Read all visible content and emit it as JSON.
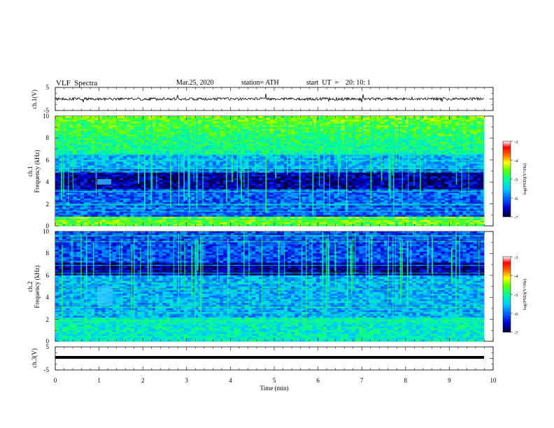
{
  "header": {
    "title": "VLF  Spectra",
    "date": "Mar.25, 2020",
    "station": "station= ATH",
    "start_ut": "start  UT  =    20: 10: 1"
  },
  "chart_data": [
    {
      "type": "line",
      "panel": "ch1-waveform",
      "ylabel": "ch.1(V)",
      "ylim": [
        -5,
        5
      ],
      "yticks": [
        "5",
        "-5"
      ],
      "xlim": [
        0,
        10
      ],
      "series_color": "#000000"
    },
    {
      "type": "heatmap",
      "panel": "ch1-spectrogram",
      "ylabel": "ch.1\nFrequency  (kHz)",
      "ylim": [
        0,
        10
      ],
      "yticks": [
        "0",
        "2",
        "4",
        "6",
        "8",
        "10"
      ],
      "xlim": [
        0,
        10
      ],
      "colorbar": {
        "label": "log(PSD)(V²/Hz)",
        "range": [
          -7,
          -3
        ],
        "ticks": [
          "-3",
          "-4",
          "-5",
          "-6",
          "-7"
        ],
        "colormap": [
          "#000033",
          "#0000cc",
          "#0066ff",
          "#00ccff",
          "#00ff99",
          "#66ff00",
          "#ffff00",
          "#ff6600",
          "#ff0000",
          "#ffffff"
        ]
      }
    },
    {
      "type": "heatmap",
      "panel": "ch2-spectrogram",
      "ylabel": "ch.2\nFrequency  (kHz)",
      "ylim": [
        0,
        10
      ],
      "yticks": [
        "0",
        "2",
        "4",
        "6",
        "8",
        "10"
      ],
      "xlim": [
        0,
        10
      ],
      "colorbar": {
        "label": "log(PSD)(V²/Hz)",
        "range": [
          -7,
          -3
        ],
        "ticks": [
          "-3",
          "-4",
          "-5",
          "-6",
          "-7"
        ]
      }
    },
    {
      "type": "line",
      "panel": "ch3-waveform",
      "ylabel": "ch.3(V)",
      "ylim": [
        -5,
        5
      ],
      "yticks": [
        "5",
        "-5"
      ],
      "xlim": [
        0,
        10
      ],
      "xticks": [
        "0",
        "1",
        "2",
        "3",
        "4",
        "5",
        "6",
        "7",
        "8",
        "9",
        "10"
      ],
      "xlabel": "Time  (min)"
    }
  ]
}
